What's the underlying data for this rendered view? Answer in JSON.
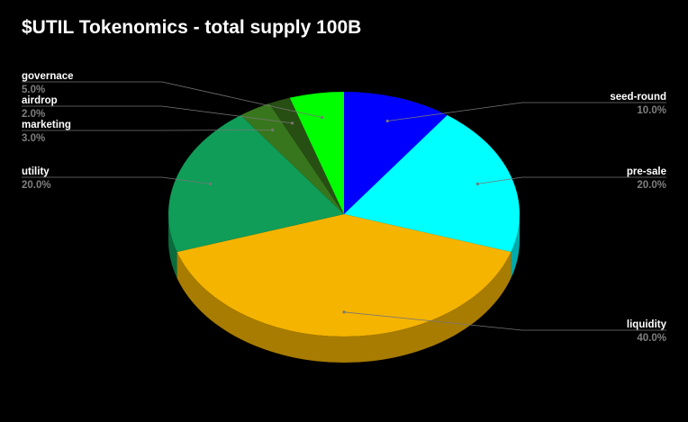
{
  "chart_data": {
    "type": "pie",
    "title": "$UTIL Tokenomics - total supply 100B",
    "style": "3d",
    "slices": [
      {
        "name": "seed-round",
        "value": 10.0,
        "label": "10.0%",
        "color": "#0000ff",
        "side_color": "#0000aa",
        "side": "right"
      },
      {
        "name": "pre-sale",
        "value": 20.0,
        "label": "20.0%",
        "color": "#00ffff",
        "side_color": "#00aaaa",
        "side": "right"
      },
      {
        "name": "liquidity",
        "value": 40.0,
        "label": "40.0%",
        "color": "#f5b400",
        "side_color": "#a87c00",
        "side": "right"
      },
      {
        "name": "utility",
        "value": 20.0,
        "label": "20.0%",
        "color": "#0f9d58",
        "side_color": "#0a6b3c",
        "side": "left"
      },
      {
        "name": "marketing",
        "value": 3.0,
        "label": "3.0%",
        "color": "#38761d",
        "side_color": "#264f14",
        "side": "left"
      },
      {
        "name": "airdrop",
        "value": 2.0,
        "label": "2.0%",
        "color": "#274e13",
        "side_color": "#1a350d",
        "side": "left"
      },
      {
        "name": "governace",
        "value": 5.0,
        "label": "5.0%",
        "color": "#00ff00",
        "side_color": "#00aa00",
        "side": "left"
      }
    ],
    "legend": "labels-outside"
  }
}
